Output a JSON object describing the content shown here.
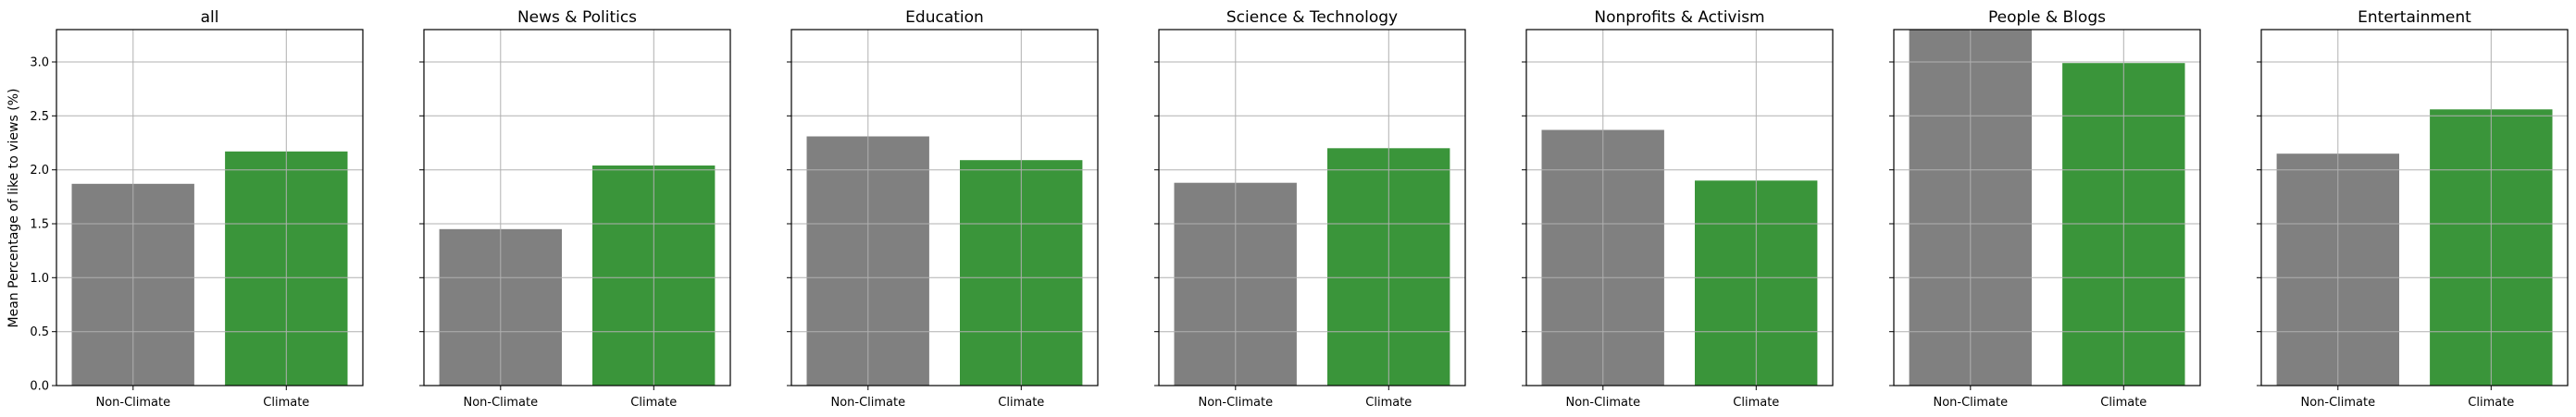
{
  "figure": {
    "ylabel": "Mean Percentage of like to views (%)"
  },
  "colors": {
    "non_climate": "#808080",
    "climate": "#3a953a",
    "grid": "#b0b0b0",
    "axes": "#000000"
  },
  "chart_data": [
    {
      "type": "bar",
      "title": "all",
      "categories": [
        "Non-Climate",
        "Climate"
      ],
      "values": [
        1.87,
        2.17
      ],
      "ylim": [
        0,
        3.3
      ],
      "yticks": [
        "0.0",
        "0.5",
        "1.0",
        "1.5",
        "2.0",
        "2.5",
        "3.0"
      ],
      "grid": true,
      "ylabel": "Mean Percentage of like to views (%)"
    },
    {
      "type": "bar",
      "title": "News & Politics",
      "categories": [
        "Non-Climate",
        "Climate"
      ],
      "values": [
        1.45,
        2.04
      ],
      "ylim": [
        0,
        3.3
      ],
      "grid": true
    },
    {
      "type": "bar",
      "title": "Education",
      "categories": [
        "Non-Climate",
        "Climate"
      ],
      "values": [
        2.31,
        2.09
      ],
      "ylim": [
        0,
        3.3
      ],
      "grid": true
    },
    {
      "type": "bar",
      "title": "Science & Technology",
      "categories": [
        "Non-Climate",
        "Climate"
      ],
      "values": [
        1.88,
        2.2
      ],
      "ylim": [
        0,
        3.3
      ],
      "grid": true
    },
    {
      "type": "bar",
      "title": "Nonprofits & Activism",
      "categories": [
        "Non-Climate",
        "Climate"
      ],
      "values": [
        2.37,
        1.9
      ],
      "ylim": [
        0,
        3.3
      ],
      "grid": true
    },
    {
      "type": "bar",
      "title": "People & Blogs",
      "categories": [
        "Non-Climate",
        "Climate"
      ],
      "values": [
        3.3,
        2.99
      ],
      "ylim": [
        0,
        3.3
      ],
      "grid": true
    },
    {
      "type": "bar",
      "title": "Entertainment",
      "categories": [
        "Non-Climate",
        "Climate"
      ],
      "values": [
        2.15,
        2.56
      ],
      "ylim": [
        0,
        3.3
      ],
      "grid": true
    }
  ]
}
